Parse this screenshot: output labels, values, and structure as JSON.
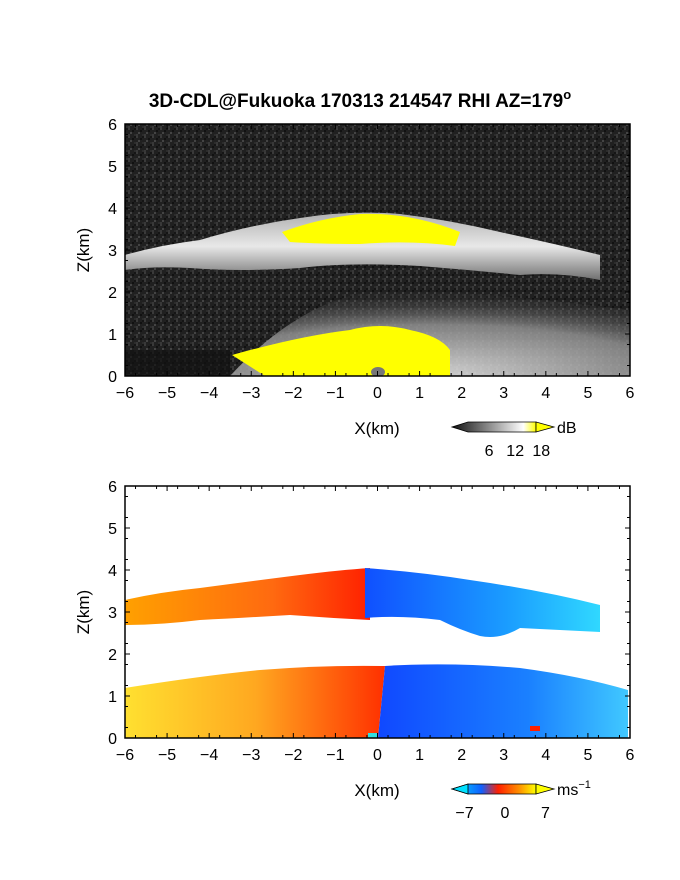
{
  "title": "3D-CDL@Fukuoka 170313 214547 RHI AZ=179",
  "title_superscript": "o",
  "chart_data": [
    {
      "type": "heatmap",
      "name": "reflectivity",
      "xlabel": "X(km)",
      "ylabel": "Z(km)",
      "xlim": [
        -6,
        6
      ],
      "ylim": [
        0,
        6
      ],
      "x_ticks": [
        "−6",
        "−5",
        "−4",
        "−3",
        "−2",
        "−1",
        "0",
        "1",
        "2",
        "3",
        "4",
        "5",
        "6"
      ],
      "y_ticks": [
        "0",
        "1",
        "2",
        "3",
        "4",
        "5",
        "6"
      ],
      "colorbar": {
        "unit": "dB",
        "ticks": [
          "6",
          "12",
          "18"
        ],
        "range": [
          0,
          20
        ],
        "colors": [
          "#101010",
          "#ffffff",
          "#ffff00"
        ]
      },
      "layers": [
        {
          "name": "cloud-layer",
          "x_range": [
            -6,
            5.0
          ],
          "z_range": [
            2.3,
            3.8
          ]
        },
        {
          "name": "boundary-layer",
          "x_range": [
            -3.5,
            6
          ],
          "z_range": [
            0,
            1.7
          ]
        }
      ]
    },
    {
      "type": "heatmap",
      "name": "doppler-velocity",
      "xlabel": "X(km)",
      "ylabel": "Z(km)",
      "xlim": [
        -6,
        6
      ],
      "ylim": [
        0,
        6
      ],
      "x_ticks": [
        "−6",
        "−5",
        "−4",
        "−3",
        "−2",
        "−1",
        "0",
        "1",
        "2",
        "3",
        "4",
        "5",
        "6"
      ],
      "y_ticks": [
        "0",
        "1",
        "2",
        "3",
        "4",
        "5",
        "6"
      ],
      "colorbar": {
        "unit": "ms",
        "unit_superscript": "−1",
        "ticks": [
          "−7",
          "0",
          "7"
        ],
        "range": [
          -9,
          9
        ],
        "colors": [
          "#00e0ff",
          "#1060ff",
          "#ff2000",
          "#ffff00"
        ]
      },
      "regions": [
        {
          "name": "upper-positive",
          "x_range": [
            -6,
            0
          ],
          "z_range": [
            2.6,
            3.9
          ],
          "velocity": 5
        },
        {
          "name": "upper-negative",
          "x_range": [
            0,
            5.5
          ],
          "z_range": [
            2.4,
            3.9
          ],
          "velocity": -6
        },
        {
          "name": "lower-positive",
          "x_range": [
            -6,
            0.1
          ],
          "z_range": [
            0,
            1.7
          ],
          "velocity": 4
        },
        {
          "name": "lower-negative",
          "x_range": [
            0.1,
            6
          ],
          "z_range": [
            0,
            1.7
          ],
          "velocity": -5
        }
      ]
    }
  ]
}
